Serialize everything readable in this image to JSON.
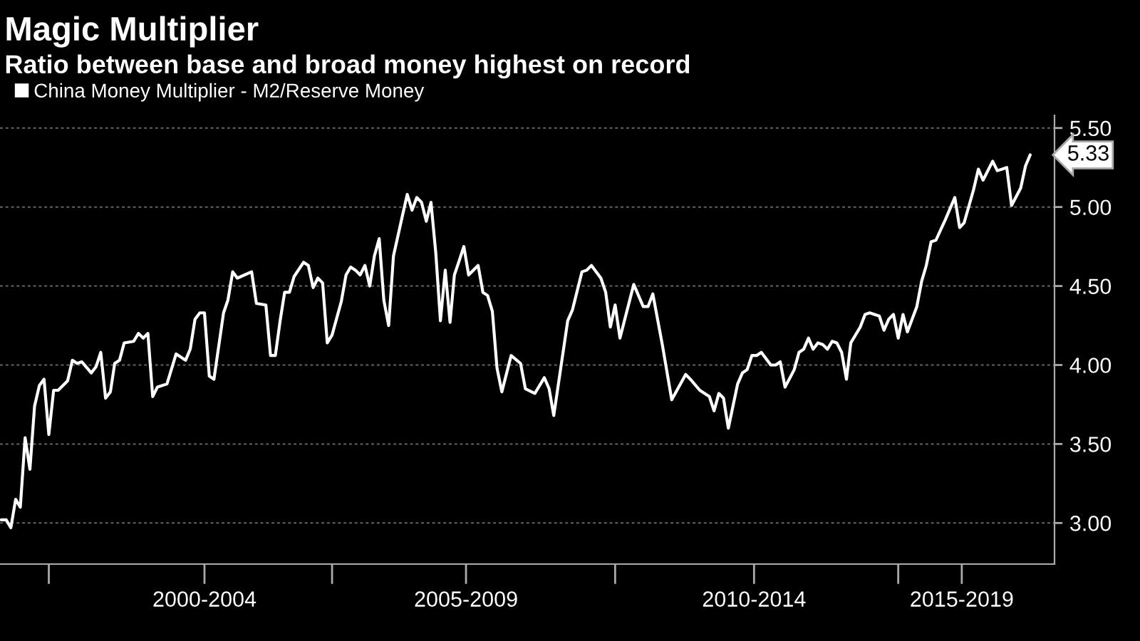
{
  "chart_data": {
    "type": "line",
    "title": "Magic Multiplier",
    "subtitle": "Ratio between base and broad money highest on record",
    "x": [
      "1999-03",
      "1999-04",
      "1999-05",
      "1999-06",
      "1999-07",
      "1999-08",
      "1999-09",
      "1999-10",
      "1999-11",
      "1999-12",
      "2000-01",
      "2000-02",
      "2000-03",
      "2000-05",
      "2000-06",
      "2000-07",
      "2000-08",
      "2000-10",
      "2000-11",
      "2000-12",
      "2001-01",
      "2001-02",
      "2001-03",
      "2001-04",
      "2001-05",
      "2001-07",
      "2001-08",
      "2001-09",
      "2001-10",
      "2001-11",
      "2001-12",
      "2002-02",
      "2002-04",
      "2002-06",
      "2002-07",
      "2002-08",
      "2002-09",
      "2002-10",
      "2002-11",
      "2002-12",
      "2003-02",
      "2003-03",
      "2003-04",
      "2003-05",
      "2003-08",
      "2003-09",
      "2003-11",
      "2003-12",
      "2004-01",
      "2004-02",
      "2004-03",
      "2004-04",
      "2004-05",
      "2004-07",
      "2004-08",
      "2004-09",
      "2004-10",
      "2004-11",
      "2004-12",
      "2005-01",
      "2005-03",
      "2005-04",
      "2005-05",
      "2005-06",
      "2005-07",
      "2005-08",
      "2005-09",
      "2005-10",
      "2005-11",
      "2005-12",
      "2006-01",
      "2006-02",
      "2006-04",
      "2006-05",
      "2006-06",
      "2006-07",
      "2006-08",
      "2006-09",
      "2006-10",
      "2006-11",
      "2006-12",
      "2007-01",
      "2007-02",
      "2007-03",
      "2007-04",
      "2007-05",
      "2007-06",
      "2007-08",
      "2007-09",
      "2007-10",
      "2007-11",
      "2007-12",
      "2008-01",
      "2008-03",
      "2008-05",
      "2008-06",
      "2008-08",
      "2008-10",
      "2008-11",
      "2008-12",
      "2009-03",
      "2009-04",
      "2009-06",
      "2009-07",
      "2009-08",
      "2009-10",
      "2009-11",
      "2009-12",
      "2010-01",
      "2010-02",
      "2010-05",
      "2010-07",
      "2010-08",
      "2010-09",
      "2010-11",
      "2011-01",
      "2011-04",
      "2011-05",
      "2011-07",
      "2011-09",
      "2011-10",
      "2011-11",
      "2011-12",
      "2012-01",
      "2012-03",
      "2012-04",
      "2012-05",
      "2012-06",
      "2012-07",
      "2012-08",
      "2012-10",
      "2012-11",
      "2012-12",
      "2013-01",
      "2013-03",
      "2013-04",
      "2013-05",
      "2013-06",
      "2013-07",
      "2013-08",
      "2013-09",
      "2013-10",
      "2013-11",
      "2013-12",
      "2014-01",
      "2014-02",
      "2014-03",
      "2014-05",
      "2014-06",
      "2014-07",
      "2014-09",
      "2014-10",
      "2014-11",
      "2014-12",
      "2015-01",
      "2015-02",
      "2015-03",
      "2015-05",
      "2015-06",
      "2015-07",
      "2015-08",
      "2015-09",
      "2015-11",
      "2016-01",
      "2016-02",
      "2016-03",
      "2016-05",
      "2016-06",
      "2016-07",
      "2016-09",
      "2016-10",
      "2016-11",
      "2016-12",
      "2017-01",
      "2017-03",
      "2017-04",
      "2017-05"
    ],
    "series": [
      {
        "name": "China Money Multiplier - M2/Reserve Money",
        "color": "#ffffff",
        "values": [
          3.02,
          3.02,
          2.97,
          3.15,
          3.1,
          3.54,
          3.34,
          3.74,
          3.87,
          3.91,
          3.56,
          3.84,
          3.84,
          3.9,
          4.03,
          4.01,
          4.02,
          3.95,
          3.99,
          4.08,
          3.79,
          3.83,
          4.01,
          4.03,
          4.14,
          4.15,
          4.2,
          4.17,
          4.2,
          3.8,
          3.86,
          3.88,
          4.07,
          4.03,
          4.1,
          4.29,
          4.33,
          4.33,
          3.93,
          3.91,
          4.33,
          4.41,
          4.59,
          4.55,
          4.59,
          4.39,
          4.38,
          4.06,
          4.06,
          4.28,
          4.46,
          4.46,
          4.56,
          4.65,
          4.63,
          4.49,
          4.55,
          4.52,
          4.14,
          4.19,
          4.4,
          4.57,
          4.62,
          4.6,
          4.57,
          4.63,
          4.5,
          4.69,
          4.8,
          4.41,
          4.25,
          4.69,
          4.95,
          5.08,
          4.98,
          5.06,
          5.03,
          4.91,
          5.03,
          4.71,
          4.28,
          4.6,
          4.27,
          4.57,
          4.66,
          4.75,
          4.57,
          4.63,
          4.46,
          4.44,
          4.34,
          3.98,
          3.83,
          4.06,
          4.01,
          3.85,
          3.82,
          3.92,
          3.85,
          3.68,
          4.28,
          4.35,
          4.59,
          4.6,
          4.63,
          4.55,
          4.46,
          4.24,
          4.38,
          4.17,
          4.51,
          4.37,
          4.37,
          4.45,
          4.13,
          3.78,
          3.94,
          3.91,
          3.84,
          3.8,
          3.71,
          3.82,
          3.79,
          3.6,
          3.88,
          3.95,
          3.97,
          4.06,
          4.06,
          4.08,
          4.0,
          4.0,
          4.02,
          3.86,
          3.97,
          4.08,
          4.1,
          4.17,
          4.1,
          4.14,
          4.13,
          4.1,
          4.15,
          4.14,
          4.08,
          3.91,
          4.14,
          4.24,
          4.32,
          4.33,
          4.31,
          4.22,
          4.29,
          4.32,
          4.17,
          4.32,
          4.21,
          4.37,
          4.53,
          4.63,
          4.78,
          4.79,
          4.92,
          5.06,
          4.87,
          4.9,
          5.11,
          5.24,
          5.17,
          5.29,
          5.23,
          5.24,
          5.25,
          5.01,
          5.12,
          5.26,
          5.33
        ]
      }
    ],
    "annotations": [
      {
        "text": "5.33",
        "x": "2017-05",
        "y": 5.33
      }
    ],
    "xlim": [
      "1999-02-20",
      "2017-10-05"
    ],
    "xticks": [
      {
        "value": "2000-01-01",
        "label": null
      },
      {
        "value": "2002-10-01",
        "label": "2000-2004"
      },
      {
        "value": "2005-01-01",
        "label": null
      },
      {
        "value": "2007-05-15",
        "label": "2005-2009"
      },
      {
        "value": "2010-01-01",
        "label": null
      },
      {
        "value": "2012-06-15",
        "label": "2010-2014"
      },
      {
        "value": "2015-01-01",
        "label": null
      },
      {
        "value": "2016-02-15",
        "label": "2015-2019"
      }
    ],
    "ylim": [
      2.74,
      5.58
    ],
    "yticks": [
      {
        "value": 3,
        "label": "3.00"
      },
      {
        "value": 3.5,
        "label": "3.50"
      },
      {
        "value": 4,
        "label": "4.00"
      },
      {
        "value": 4.5,
        "label": "4.50"
      },
      {
        "value": 5,
        "label": "5.00"
      },
      {
        "value": 5.5,
        "label": "5.50"
      }
    ],
    "grid": "y",
    "legend": "top left",
    "marker": "none",
    "line_style": "solid"
  }
}
